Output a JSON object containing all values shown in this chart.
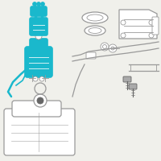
{
  "bg_color": "#f0f0eb",
  "line_color": "#999999",
  "highlight_color": "#1ab8cc",
  "dark_color": "#666666",
  "fig_size": [
    2.0,
    2.0
  ],
  "dpi": 100
}
